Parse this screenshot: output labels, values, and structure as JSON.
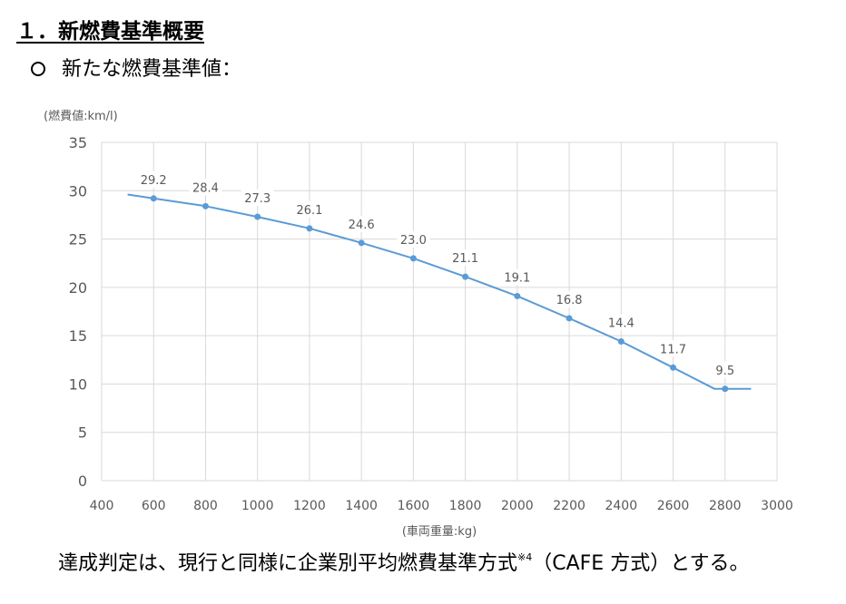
{
  "page": {
    "heading": "１．新燃費基準概要",
    "subheading": "新たな燃費基準値：",
    "footnote_main": "達成判定は、現行と同様に企業別平均燃費基準方式",
    "footnote_sup": "※4",
    "footnote_end": "（CAFE 方式）とする。"
  },
  "colors": {
    "line": "#5B9BD5",
    "grid": "#D9D9D9",
    "axis_text": "#595959"
  },
  "chart_data": {
    "type": "line",
    "ylabel": "(燃費値:km/l)",
    "xlabel": "(車両重量:kg)",
    "xlim": [
      400,
      3000
    ],
    "ylim": [
      0,
      35
    ],
    "x_ticks": [
      400,
      600,
      800,
      1000,
      1200,
      1400,
      1600,
      1800,
      2000,
      2200,
      2400,
      2600,
      2800,
      3000
    ],
    "y_ticks": [
      0,
      5,
      10,
      15,
      20,
      25,
      30,
      35
    ],
    "grid": true,
    "legend": "none",
    "series": [
      {
        "line_points": [
          {
            "x": 500,
            "y": 29.6
          },
          {
            "x": 600,
            "y": 29.2
          },
          {
            "x": 800,
            "y": 28.4
          },
          {
            "x": 1000,
            "y": 27.3
          },
          {
            "x": 1200,
            "y": 26.1
          },
          {
            "x": 1400,
            "y": 24.6
          },
          {
            "x": 1600,
            "y": 23.0
          },
          {
            "x": 1800,
            "y": 21.1
          },
          {
            "x": 2000,
            "y": 19.1
          },
          {
            "x": 2200,
            "y": 16.8
          },
          {
            "x": 2400,
            "y": 14.4
          },
          {
            "x": 2600,
            "y": 11.7
          },
          {
            "x": 2760,
            "y": 9.5
          },
          {
            "x": 2800,
            "y": 9.5
          },
          {
            "x": 2900,
            "y": 9.5
          }
        ],
        "labeled_points": [
          {
            "x": 600,
            "y": 29.2,
            "label": "29.2"
          },
          {
            "x": 800,
            "y": 28.4,
            "label": "28.4"
          },
          {
            "x": 1000,
            "y": 27.3,
            "label": "27.3"
          },
          {
            "x": 1200,
            "y": 26.1,
            "label": "26.1"
          },
          {
            "x": 1400,
            "y": 24.6,
            "label": "24.6"
          },
          {
            "x": 1600,
            "y": 23.0,
            "label": "23.0"
          },
          {
            "x": 1800,
            "y": 21.1,
            "label": "21.1"
          },
          {
            "x": 2000,
            "y": 19.1,
            "label": "19.1"
          },
          {
            "x": 2200,
            "y": 16.8,
            "label": "16.8"
          },
          {
            "x": 2400,
            "y": 14.4,
            "label": "14.4"
          },
          {
            "x": 2600,
            "y": 11.7,
            "label": "11.7"
          },
          {
            "x": 2800,
            "y": 9.5,
            "label": "9.5"
          }
        ]
      }
    ]
  }
}
